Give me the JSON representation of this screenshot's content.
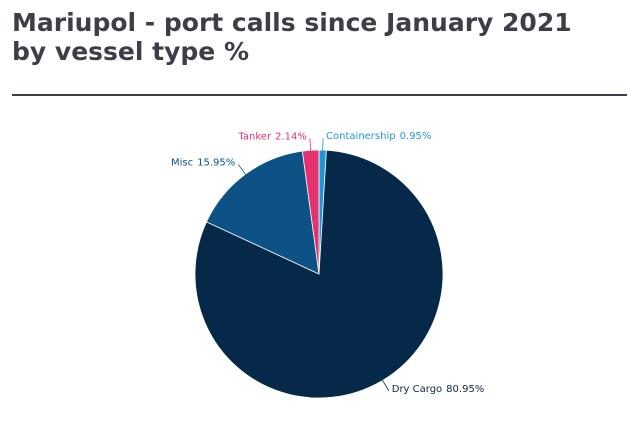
{
  "chart_data": {
    "type": "pie",
    "title": "Mariupol - port calls since January 2021 by vessel type %",
    "categories": [
      "Containership",
      "Dry Cargo",
      "Misc",
      "Tanker"
    ],
    "values": [
      0.95,
      80.95,
      15.95,
      2.14
    ],
    "value_labels": [
      "0.95%",
      "80.95%",
      "15.95%",
      "2.14%"
    ],
    "colors": [
      "#1f97d4",
      "#06294a",
      "#0c5286",
      "#e2336e"
    ]
  }
}
